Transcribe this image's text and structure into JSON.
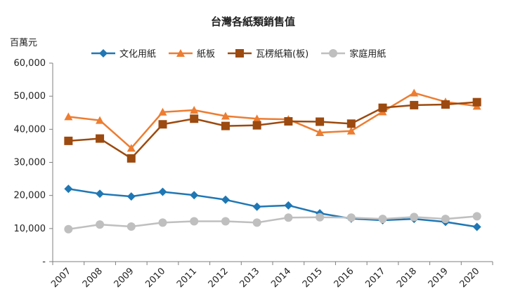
{
  "chart_data": {
    "type": "line",
    "title": "台灣各紙類銷售值",
    "unit_label": "百萬元",
    "xlabel": "",
    "ylabel": "百萬元",
    "ylim": [
      0,
      60000
    ],
    "yticks": [
      0,
      10000,
      20000,
      30000,
      40000,
      50000,
      60000
    ],
    "ytick_labels": [
      "-",
      "10,000",
      "20,000",
      "30,000",
      "40,000",
      "50,000",
      "60,000"
    ],
    "categories": [
      "2007",
      "2008",
      "2009",
      "2010",
      "2011",
      "2012",
      "2013",
      "2014",
      "2015",
      "2016",
      "2017",
      "2018",
      "2019",
      "2020"
    ],
    "legend_position": "top",
    "grid": false,
    "series": [
      {
        "name": "文化用紙",
        "color": "#1f77b4",
        "marker": "diamond",
        "values": [
          22000,
          20500,
          19700,
          21100,
          20100,
          18700,
          16600,
          17000,
          14600,
          13000,
          12500,
          12900,
          12000,
          10500
        ]
      },
      {
        "name": "紙板",
        "color": "#ed7d31",
        "marker": "triangle",
        "values": [
          43800,
          42700,
          34300,
          45200,
          45800,
          44000,
          43200,
          43000,
          39000,
          39500,
          45300,
          51000,
          48300,
          47000
        ]
      },
      {
        "name": "瓦楞紙箱(板)",
        "color": "#9c4a0f",
        "marker": "square",
        "values": [
          36500,
          37200,
          31200,
          41500,
          43200,
          41000,
          41200,
          42400,
          42300,
          41700,
          46500,
          47300,
          47500,
          48200
        ]
      },
      {
        "name": "家庭用紙",
        "color": "#bfbfbf",
        "marker": "circle",
        "values": [
          9800,
          11200,
          10600,
          11800,
          12200,
          12200,
          11800,
          13300,
          13400,
          13300,
          12900,
          13500,
          12900,
          13700
        ]
      }
    ]
  }
}
